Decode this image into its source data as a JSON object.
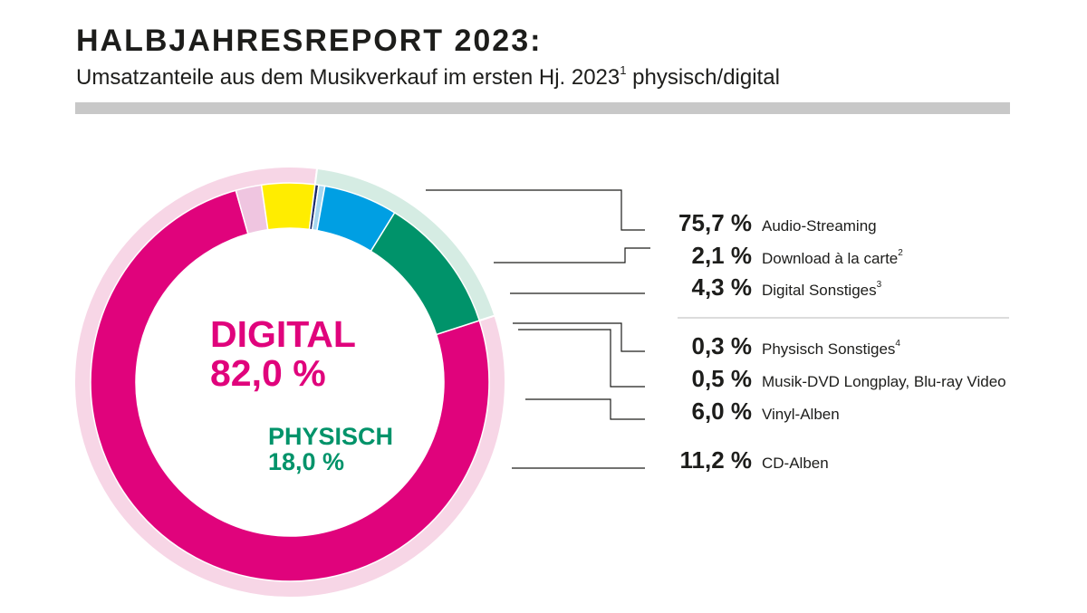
{
  "header": {
    "title": "HALBJAHRESREPORT 2023:",
    "subtitle": "Umsatzanteile aus dem Musikverkauf im ersten Hj. 2023",
    "subtitle_sup": "1",
    "subtitle_end": " physisch/digital"
  },
  "groups": {
    "digital": {
      "label": "DIGITAL",
      "value": "82,0 %",
      "color": "#e0037c",
      "ring_color": "#f7d6e6"
    },
    "physisch": {
      "label": "PHYSISCH",
      "value": "18,0 %",
      "color": "#00936a",
      "ring_color": "#d5ece3"
    }
  },
  "chart_data": {
    "type": "donut",
    "title": "Umsatzanteile aus dem Musikverkauf im ersten Hj. 2023 physisch/digital",
    "unit": "%",
    "segments": [
      {
        "name": "Audio-Streaming",
        "sup": "",
        "value": 75.7,
        "label": "75,7 %",
        "group": "digital",
        "color": "#e0037c"
      },
      {
        "name": "Download à la carte",
        "sup": "2",
        "value": 2.1,
        "label": "2,1 %",
        "group": "digital",
        "color": "#efc5e0"
      },
      {
        "name": "Digital Sonstiges",
        "sup": "3",
        "value": 4.3,
        "label": "4,3 %",
        "group": "digital",
        "color": "#ffed00"
      },
      {
        "name": "Physisch Sonstiges",
        "sup": "4",
        "value": 0.3,
        "label": "0,3 %",
        "group": "physisch",
        "color": "#1d2d6b"
      },
      {
        "name": "Musik-DVD Longplay, Blu-ray Video",
        "sup": "",
        "value": 0.5,
        "label": "0,5 %",
        "group": "physisch",
        "color": "#a5d6f0"
      },
      {
        "name": "Vinyl-Alben",
        "sup": "",
        "value": 6.0,
        "label": "6,0 %",
        "group": "physisch",
        "color": "#009fe3"
      },
      {
        "name": "CD-Alben",
        "sup": "",
        "value": 11.2,
        "label": "11,2 %",
        "group": "physisch",
        "color": "#00936a"
      }
    ]
  }
}
